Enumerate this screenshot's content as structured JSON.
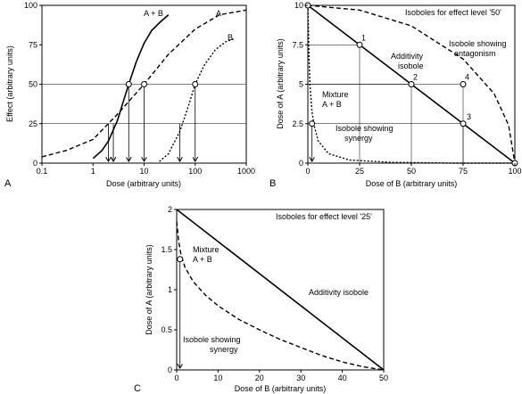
{
  "chart_data": [
    {
      "panel": "A",
      "type": "line",
      "xscale": "log",
      "xlim": [
        0.1,
        1000
      ],
      "ylim": [
        0,
        100
      ],
      "xticks": [
        "0.1",
        "1",
        "10",
        "100",
        "1000"
      ],
      "yticks": [
        "0",
        "25",
        "50",
        "75",
        "100"
      ],
      "xlabel": "Dose (arbitrary units)",
      "ylabel": "Effect (arbitrary units)",
      "series": [
        {
          "name": "A + B",
          "style": "solid",
          "x": [
            1,
            1.5,
            2,
            3,
            4,
            5,
            7,
            10,
            14,
            20,
            30
          ],
          "y": [
            3,
            8,
            14,
            27,
            40,
            50,
            64,
            76,
            84,
            89,
            94
          ]
        },
        {
          "name": "A",
          "style": "dashed",
          "x": [
            0.1,
            0.3,
            1,
            3,
            10,
            30,
            100,
            300,
            1000
          ],
          "y": [
            4,
            8,
            15,
            31,
            50,
            69,
            85,
            94,
            97
          ]
        },
        {
          "name": "B",
          "style": "dotted",
          "x": [
            20,
            30,
            50,
            70,
            100,
            150,
            250,
            400,
            600
          ],
          "y": [
            1,
            6,
            20,
            34,
            50,
            62,
            72,
            77,
            79
          ]
        }
      ],
      "open_points": [
        [
          5,
          50
        ],
        [
          10,
          50
        ],
        [
          100,
          50
        ]
      ],
      "hlines": [
        50,
        25
      ],
      "vlines_to_axis": [
        [
          2,
          25
        ],
        [
          2.5,
          25
        ],
        [
          5,
          50
        ],
        [
          10,
          50
        ],
        [
          50,
          25
        ],
        [
          100,
          50
        ]
      ],
      "panel_label": "A"
    },
    {
      "panel": "B",
      "type": "line",
      "xlim": [
        0,
        100
      ],
      "ylim": [
        0,
        10
      ],
      "xticks": [
        "0",
        "25",
        "50",
        "75",
        "100"
      ],
      "yticks": [
        "0",
        "2.5",
        "5",
        "7.5",
        "10"
      ],
      "xlabel": "Dose of B (arbitrary units)",
      "ylabel": "Dose of A (arbitrary units)",
      "title": "Isoboles for effect level '50'",
      "series": [
        {
          "name": "Additivity isobole",
          "style": "solid",
          "x": [
            0,
            100
          ],
          "y": [
            10,
            0
          ]
        },
        {
          "name": "Isobole showing antagonism",
          "style": "dashed",
          "x": [
            0,
            25,
            50,
            75,
            90,
            97,
            100
          ],
          "y": [
            10,
            9.7,
            8.7,
            6.6,
            4.4,
            2.4,
            0
          ]
        },
        {
          "name": "Isobole showing synergy",
          "style": "dotted",
          "x": [
            0,
            0.5,
            1,
            2,
            3,
            5,
            10,
            20,
            40,
            70,
            100
          ],
          "y": [
            10,
            7,
            5,
            3.3,
            2.4,
            1.4,
            0.6,
            0.2,
            0.05,
            0,
            0
          ]
        }
      ],
      "points": [
        {
          "label": "1",
          "x": 25,
          "y": 7.5
        },
        {
          "label": "2",
          "x": 50,
          "y": 5
        },
        {
          "label": "3",
          "x": 75,
          "y": 2.5
        },
        {
          "label": "4",
          "x": 75,
          "y": 5
        }
      ],
      "mixture_point": {
        "x": 2,
        "y": 2.5
      },
      "annotations": [
        "Additivity isobole",
        "Isobole showing antagonism",
        "Mixture A + B",
        "Isobole showing synergy"
      ],
      "panel_label": "B"
    },
    {
      "panel": "C",
      "type": "line",
      "xlim": [
        0,
        50
      ],
      "ylim": [
        0,
        2
      ],
      "xticks": [
        "0",
        "10",
        "20",
        "30",
        "40",
        "50"
      ],
      "yticks": [
        "0",
        "0.5",
        "1",
        "1.5",
        "2"
      ],
      "xlabel": "Dose of B (arbitrary units)",
      "ylabel": "Dose of A (arbitrary units)",
      "title": "Isoboles for effect level '25'",
      "series": [
        {
          "name": "Additivity isobole",
          "style": "solid",
          "x": [
            0,
            50
          ],
          "y": [
            2,
            0
          ]
        },
        {
          "name": "Isobole showing synergy",
          "style": "dashed",
          "x": [
            0,
            0.5,
            1,
            2,
            4,
            7,
            10,
            15,
            20,
            25,
            30,
            35,
            40,
            45,
            50
          ],
          "y": [
            1.85,
            1.6,
            1.45,
            1.28,
            1.1,
            0.93,
            0.8,
            0.63,
            0.5,
            0.38,
            0.28,
            0.18,
            0.1,
            0.04,
            0
          ]
        }
      ],
      "mixture_point": {
        "x": 0.8,
        "y": 1.38
      },
      "annotations": [
        "Mixture A + B",
        "Additivity isobole",
        "Isobole showing synergy"
      ],
      "panel_label": "C"
    }
  ]
}
